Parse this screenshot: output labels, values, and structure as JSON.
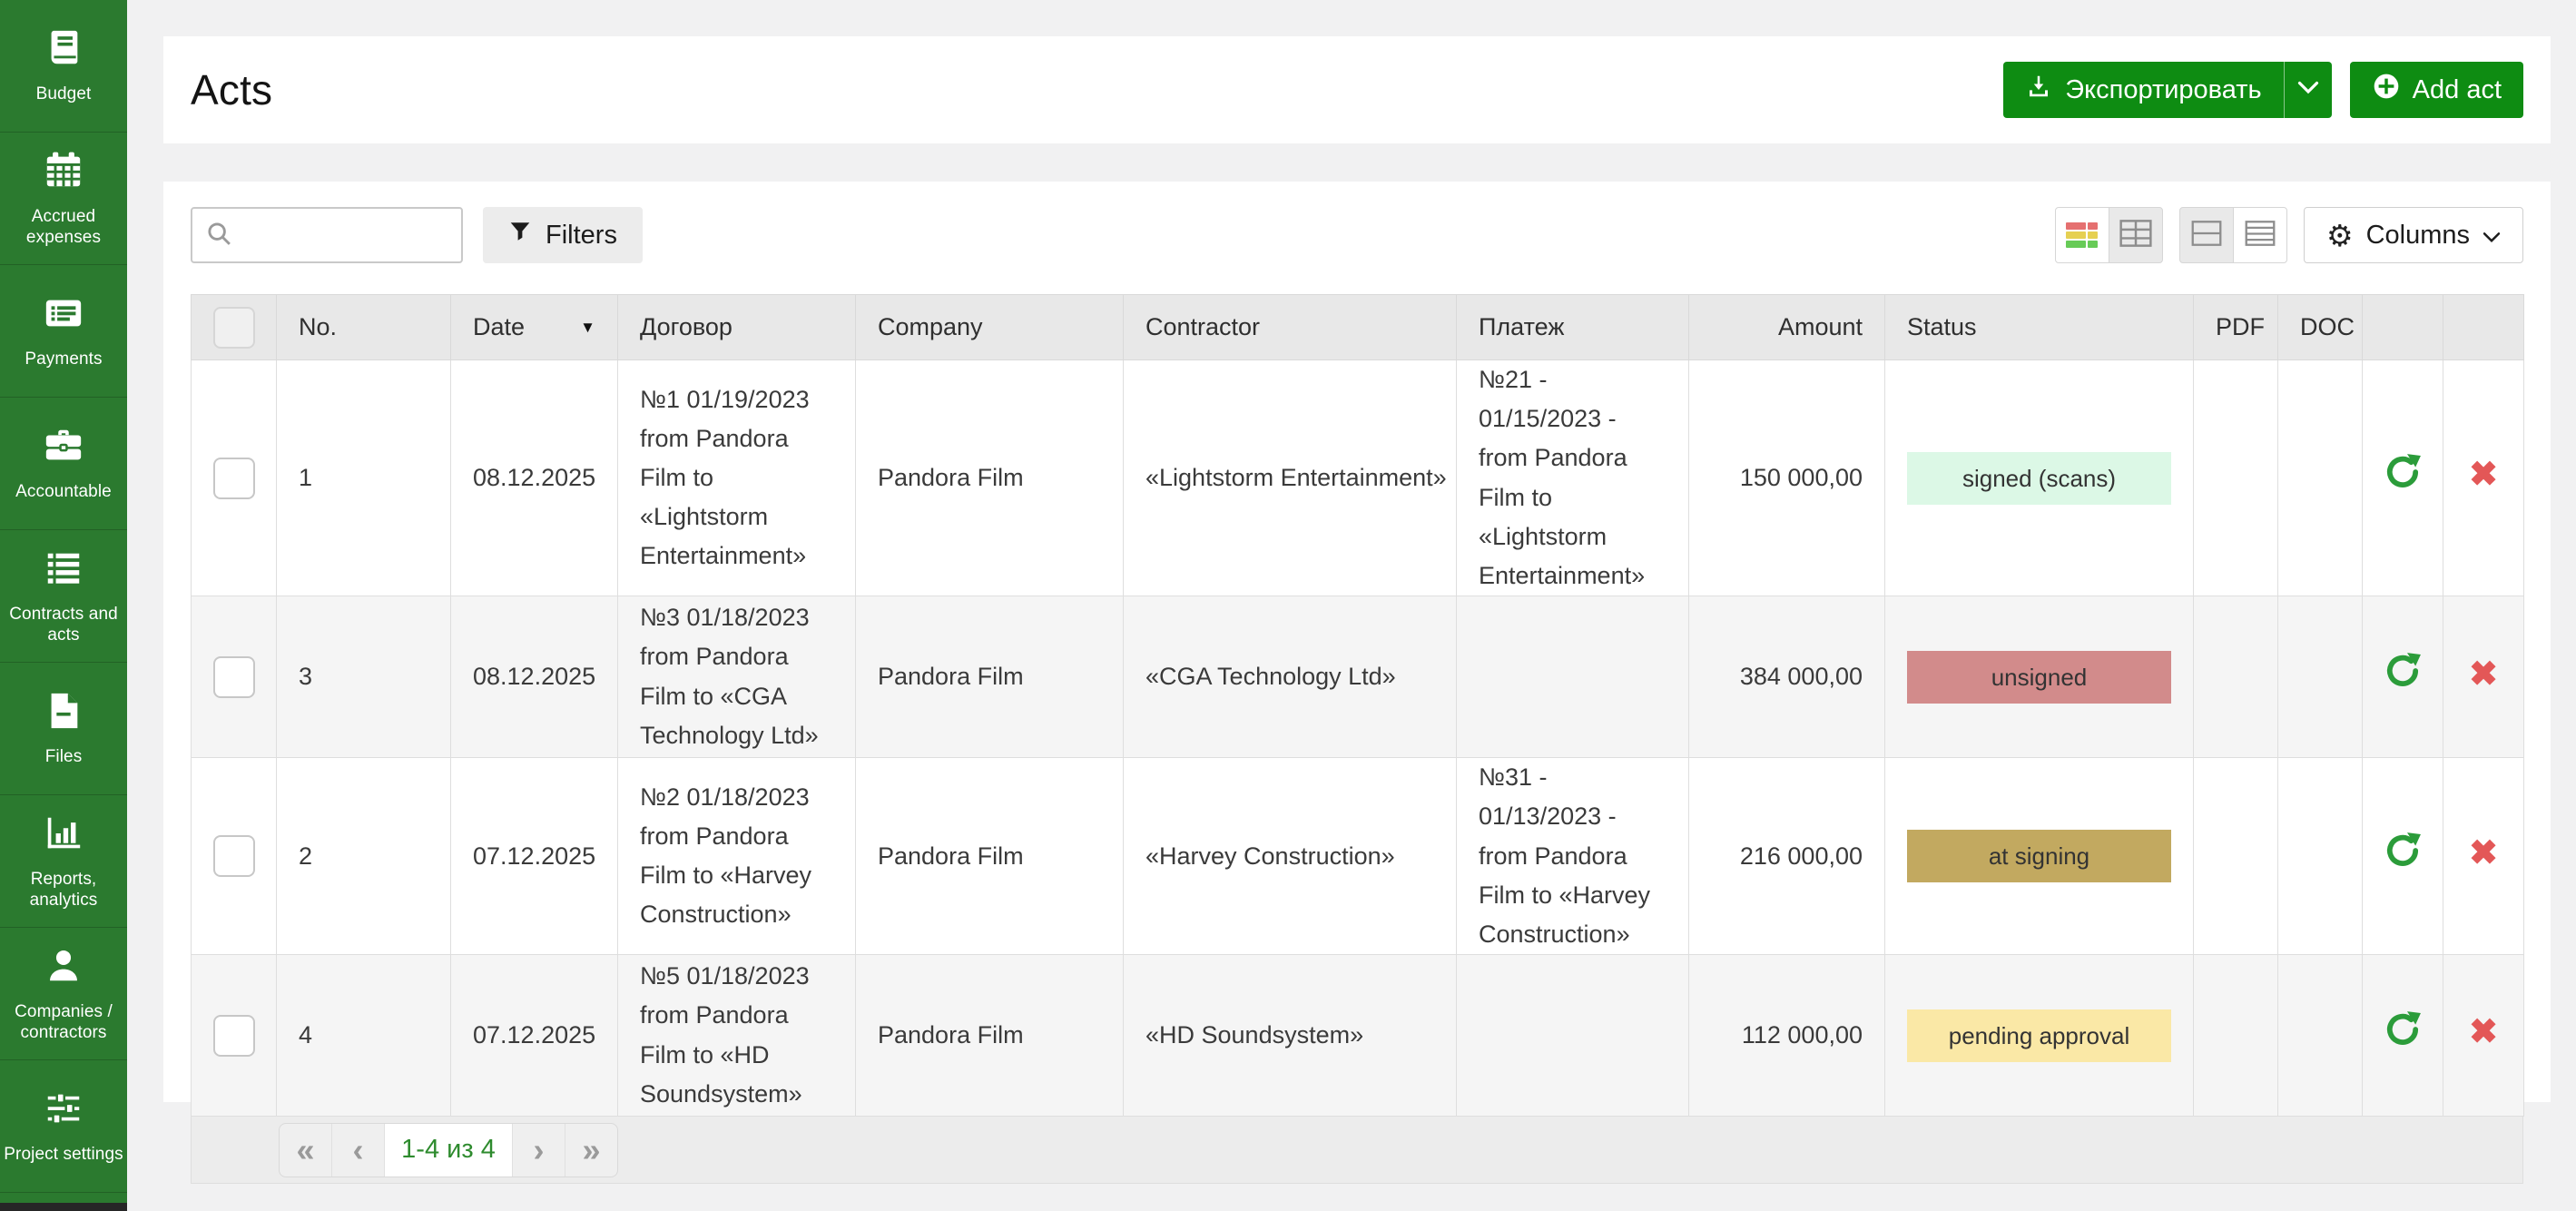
{
  "sidebar": {
    "items": [
      {
        "label": "Budget",
        "icon": "book-icon"
      },
      {
        "label": "Accrued\nexpenses",
        "icon": "calendar-icon"
      },
      {
        "label": "Payments",
        "icon": "payments-list-icon"
      },
      {
        "label": "Accountable",
        "icon": "briefcase-icon"
      },
      {
        "label": "Contracts and\nacts",
        "icon": "contracts-list-icon"
      },
      {
        "label": "Files",
        "icon": "file-icon"
      },
      {
        "label": "Reports,\nanalytics",
        "icon": "bar-chart-icon"
      },
      {
        "label": "Companies /\ncontractors",
        "icon": "person-icon"
      },
      {
        "label": "Project settings",
        "icon": "sliders-icon"
      }
    ]
  },
  "header": {
    "title": "Acts",
    "export_button": "Экспортировать",
    "add_button": "Add act"
  },
  "toolbar": {
    "search_value": "",
    "filters_button": "Filters",
    "columns_button": "Columns"
  },
  "table": {
    "columns": [
      "",
      "No.",
      "Date",
      "Договор",
      "Company",
      "Contractor",
      "Платеж",
      "Amount",
      "Status",
      "PDF",
      "DOC",
      "",
      ""
    ],
    "sorted_column": "Date",
    "sort_direction": "desc",
    "rows": [
      {
        "no": "1",
        "date": "08.12.2025",
        "contract": "№1 01/19/2023 from Pandora Film to «Lightstorm Entertainment»",
        "company": "Pandora Film",
        "contractor": "«Lightstorm Entertainment»",
        "payment": "№21 - 01/15/2023 - from Pandora Film to «Lightstorm Entertainment»",
        "amount": "150 000,00",
        "status": {
          "label": "signed (scans)",
          "color": "#dcf8e6"
        },
        "pdf": "",
        "doc": ""
      },
      {
        "no": "3",
        "date": "08.12.2025",
        "contract": "№3 01/18/2023 from Pandora Film to «CGA Technology Ltd»",
        "company": "Pandora Film",
        "contractor": "«CGA Technology Ltd»",
        "payment": "",
        "amount": "384 000,00",
        "status": {
          "label": "unsigned",
          "color": "#d28b8b"
        },
        "pdf": "",
        "doc": ""
      },
      {
        "no": "2",
        "date": "07.12.2025",
        "contract": "№2 01/18/2023 from Pandora Film to «Harvey Construction»",
        "company": "Pandora Film",
        "contractor": "«Harvey Construction»",
        "payment": "№31 - 01/13/2023 - from Pandora Film to «Harvey Construction»",
        "amount": "216 000,00",
        "status": {
          "label": "at signing",
          "color": "#c2a960"
        },
        "pdf": "",
        "doc": ""
      },
      {
        "no": "4",
        "date": "07.12.2025",
        "contract": "№5 01/18/2023 from Pandora Film to «HD Soundsystem»",
        "company": "Pandora Film",
        "contractor": "«HD Soundsystem»",
        "payment": "",
        "amount": "112 000,00",
        "status": {
          "label": "pending approval",
          "color": "#fae8a6"
        },
        "pdf": "",
        "doc": ""
      }
    ]
  },
  "pagination": {
    "range_label": "1-4 из 4",
    "icons": {
      "first": "«",
      "prev": "‹",
      "next": "›",
      "last": "»"
    }
  },
  "colors": {
    "sidebar_green": "#2b7a2f",
    "button_green": "#0e8c12",
    "accent_green": "#2e8b2e",
    "refresh_green": "#2b9c3a",
    "danger_red": "#e35757"
  }
}
